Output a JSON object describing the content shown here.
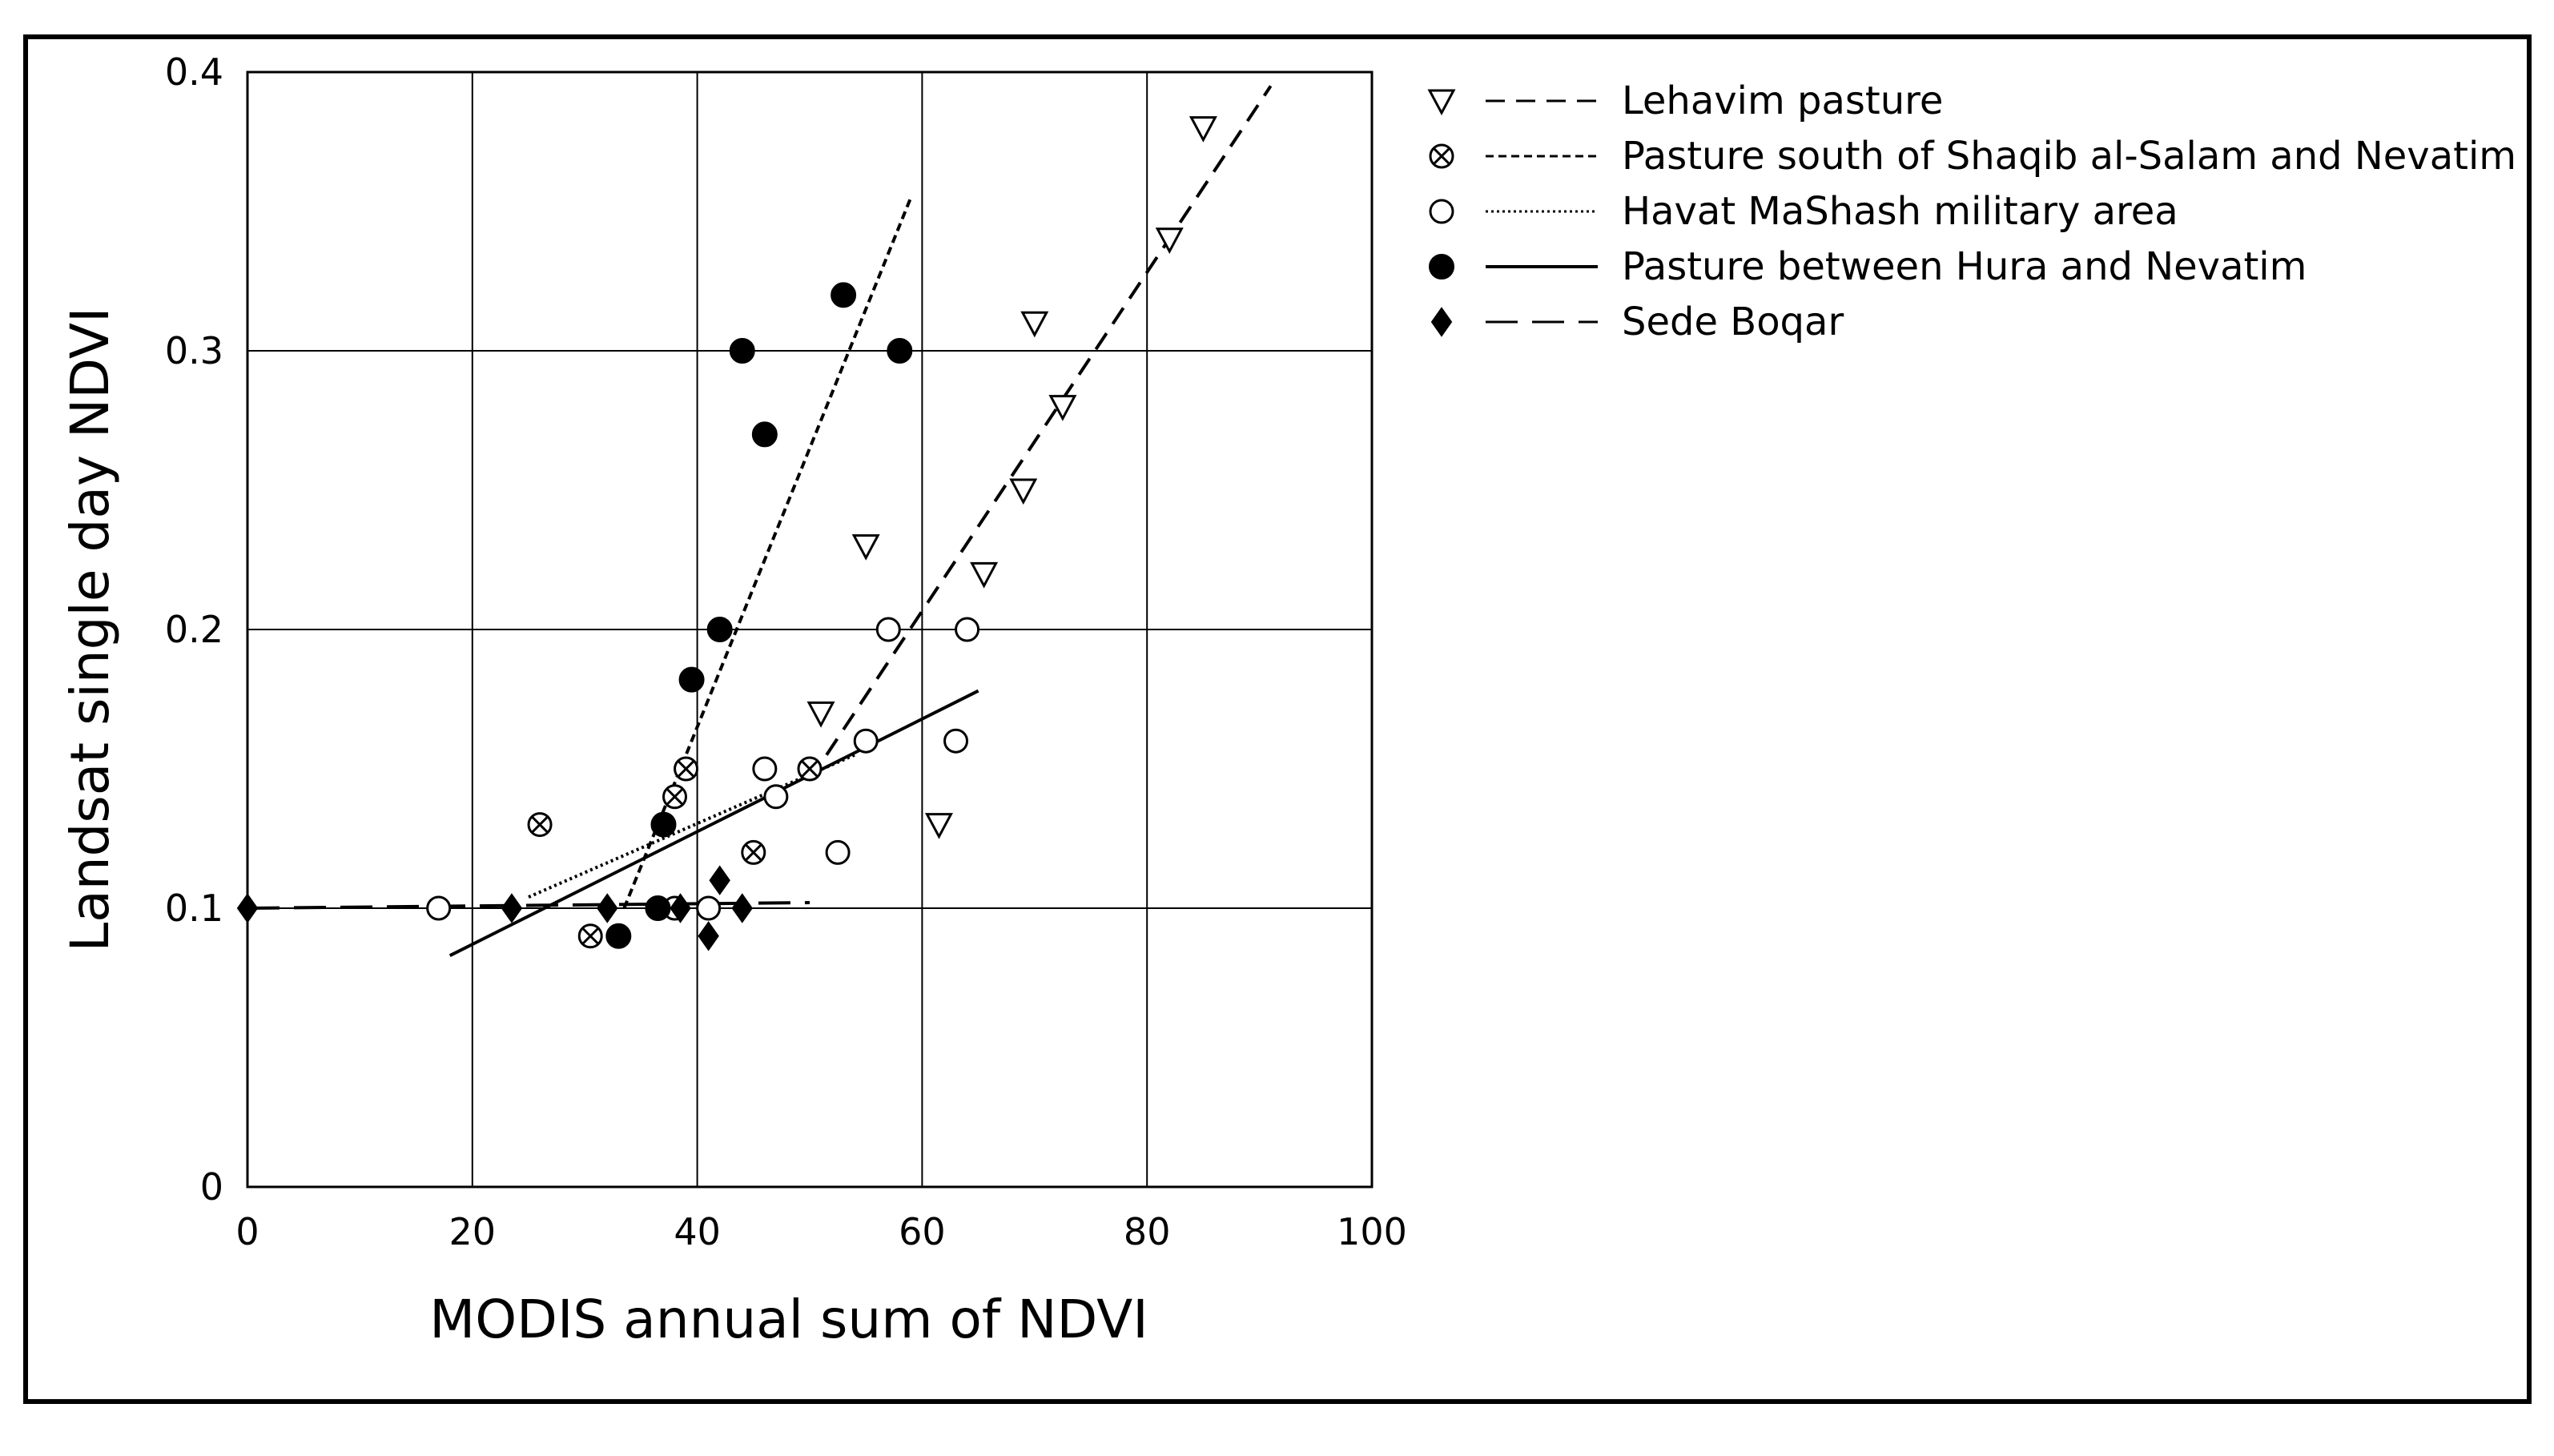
{
  "chart_data": {
    "type": "scatter",
    "xlabel": "MODIS annual sum of NDVI",
    "ylabel": "Landsat single day NDVI",
    "xlim": [
      0,
      100
    ],
    "ylim": [
      0,
      0.4
    ],
    "x_ticks": [
      0,
      20,
      40,
      60,
      80,
      100
    ],
    "x_tick_labels": [
      "0",
      "20",
      "40",
      "60",
      "80",
      "100"
    ],
    "y_ticks": [
      0,
      0.1,
      0.2,
      0.3,
      0.4
    ],
    "y_tick_labels": [
      "0",
      "0.1",
      "0.2",
      "0.3",
      "0.4"
    ],
    "grid": true,
    "legend_position": "top-right, outside plot",
    "series": [
      {
        "name": "Lehavim pasture",
        "marker": "triangle-down-open",
        "line": "dash",
        "points": [
          [
            51,
            0.17
          ],
          [
            55,
            0.23
          ],
          [
            61.5,
            0.13
          ],
          [
            65.5,
            0.22
          ],
          [
            69,
            0.25
          ],
          [
            70,
            0.31
          ],
          [
            72.5,
            0.28
          ],
          [
            82,
            0.34
          ],
          [
            85,
            0.38
          ]
        ],
        "trend": [
          [
            51.5,
            0.155
          ],
          [
            91,
            0.395
          ]
        ]
      },
      {
        "name": "Pasture south of Shaqib al-Salam and Nevatim",
        "marker": "circle-x",
        "line": "fine-dash",
        "points": [
          [
            26,
            0.13
          ],
          [
            30.5,
            0.09
          ],
          [
            38,
            0.14
          ],
          [
            39,
            0.15
          ],
          [
            45,
            0.12
          ],
          [
            50,
            0.15
          ]
        ],
        "trend": [
          [
            33.5,
            0.1
          ],
          [
            59,
            0.355
          ]
        ]
      },
      {
        "name": "Havat MaShash military area",
        "marker": "circle-open",
        "line": "dot",
        "points": [
          [
            17,
            0.1
          ],
          [
            38,
            0.1
          ],
          [
            41,
            0.1
          ],
          [
            46,
            0.15
          ],
          [
            47,
            0.14
          ],
          [
            52.5,
            0.12
          ],
          [
            55,
            0.16
          ],
          [
            57,
            0.2
          ],
          [
            63,
            0.16
          ],
          [
            64,
            0.2
          ]
        ],
        "trend": [
          [
            25,
            0.104
          ],
          [
            54,
            0.155
          ]
        ]
      },
      {
        "name": "Pasture between Hura and Nevatim",
        "marker": "circle-filled",
        "line": "solid",
        "points": [
          [
            33,
            0.09
          ],
          [
            36.5,
            0.1
          ],
          [
            37,
            0.13
          ],
          [
            39.5,
            0.182
          ],
          [
            42,
            0.2
          ],
          [
            44,
            0.3
          ],
          [
            46,
            0.27
          ],
          [
            53,
            0.32
          ],
          [
            58,
            0.3
          ]
        ],
        "trend": [
          [
            18,
            0.083
          ],
          [
            65,
            0.178
          ]
        ]
      },
      {
        "name": "Sede Boqar",
        "marker": "diamond-filled",
        "line": "long-dash",
        "points": [
          [
            0,
            0.1
          ],
          [
            23.5,
            0.1
          ],
          [
            32,
            0.1
          ],
          [
            38.5,
            0.1
          ],
          [
            41,
            0.09
          ],
          [
            42,
            0.11
          ],
          [
            44,
            0.1
          ]
        ],
        "trend": [
          [
            0,
            0.1
          ],
          [
            50,
            0.102
          ]
        ]
      }
    ]
  }
}
